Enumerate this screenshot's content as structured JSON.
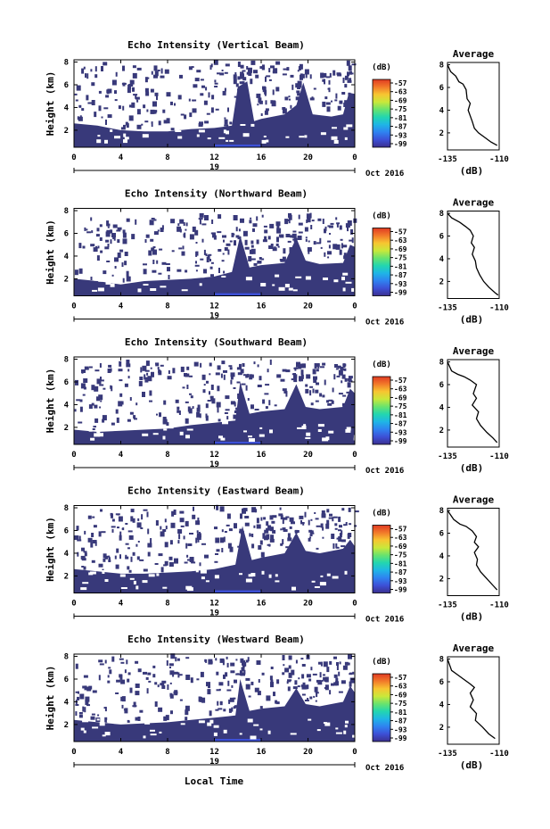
{
  "figure": {
    "xlabel": "Local Time",
    "date_label": "Oct 2016",
    "day_label": "19"
  },
  "colors": {
    "dominant": "#38397a",
    "colorbar": [
      "#3b2f8f",
      "#3d50d6",
      "#2f82f0",
      "#1fb5e6",
      "#22d6b0",
      "#68e36e",
      "#c9e83a",
      "#f7c631",
      "#f27a2a",
      "#e03a22"
    ]
  },
  "chart_data": [
    {
      "type": "heatmap",
      "title": "Echo Intensity (Vertical Beam)",
      "ylabel": "Height (km)",
      "x_ticks": [
        "0",
        "4",
        "8",
        "12",
        "16",
        "20",
        "0"
      ],
      "y_ticks": [
        "8",
        "6",
        "4",
        "2"
      ],
      "xlim": [
        0,
        24
      ],
      "ylim": [
        0.5,
        8.2
      ],
      "colorbar": {
        "label": "(dB)",
        "ticks": [
          "-57",
          "-63",
          "-69",
          "-75",
          "-81",
          "-87",
          "-93",
          "-99"
        ]
      },
      "average_profile": {
        "title": "Average",
        "xlabel": "(dB)",
        "x_ticks": [
          "-135",
          "-110"
        ],
        "xlim": [
          -135,
          -110
        ],
        "y_ticks": [
          "8",
          "6",
          "4",
          "2"
        ],
        "ylim": [
          0.5,
          8.2
        ],
        "points": [
          [
            -135,
            8.0
          ],
          [
            -133.5,
            7.4
          ],
          [
            -131,
            7.0
          ],
          [
            -129.5,
            6.5
          ],
          [
            -127.5,
            6.3
          ],
          [
            -126,
            5.8
          ],
          [
            -125.5,
            5.0
          ],
          [
            -124,
            4.6
          ],
          [
            -125,
            4.0
          ],
          [
            -124,
            3.5
          ],
          [
            -123,
            3.0
          ],
          [
            -122,
            2.4
          ],
          [
            -120,
            2.0
          ],
          [
            -117,
            1.6
          ],
          [
            -114,
            1.2
          ],
          [
            -111,
            0.9
          ]
        ]
      },
      "echo_top": [
        [
          0,
          2.6
        ],
        [
          2,
          2.4
        ],
        [
          4,
          2.0
        ],
        [
          6,
          1.9
        ],
        [
          8,
          1.9
        ],
        [
          10,
          2.1
        ],
        [
          12,
          2.2
        ],
        [
          13.5,
          2.4
        ],
        [
          14,
          5.8
        ],
        [
          14.8,
          6.3
        ],
        [
          15.4,
          2.8
        ],
        [
          16,
          3.0
        ],
        [
          18,
          3.4
        ],
        [
          19,
          4.2
        ],
        [
          19.6,
          6.2
        ],
        [
          20.4,
          3.4
        ],
        [
          22,
          3.2
        ],
        [
          23,
          3.4
        ],
        [
          23.5,
          5.3
        ],
        [
          24,
          5.2
        ]
      ],
      "scatter_top": 7.8
    },
    {
      "type": "heatmap",
      "title": "Echo Intensity (Northward Beam)",
      "ylabel": "Height (km)",
      "x_ticks": [
        "0",
        "4",
        "8",
        "12",
        "16",
        "20",
        "0"
      ],
      "y_ticks": [
        "8",
        "6",
        "4",
        "2"
      ],
      "xlim": [
        0,
        24
      ],
      "ylim": [
        0.5,
        8.2
      ],
      "colorbar": {
        "label": "(dB)",
        "ticks": [
          "-57",
          "-63",
          "-69",
          "-75",
          "-81",
          "-87",
          "-93",
          "-99"
        ]
      },
      "average_profile": {
        "title": "Average",
        "xlabel": "(dB)",
        "x_ticks": [
          "-135",
          "-110"
        ],
        "xlim": [
          -135,
          -110
        ],
        "y_ticks": [
          "8",
          "6",
          "4",
          "2"
        ],
        "ylim": [
          0.5,
          8.2
        ],
        "points": [
          [
            -135,
            8.0
          ],
          [
            -133,
            7.6
          ],
          [
            -129,
            7.2
          ],
          [
            -126,
            6.8
          ],
          [
            -124,
            6.5
          ],
          [
            -122.5,
            6.0
          ],
          [
            -123.5,
            5.4
          ],
          [
            -122,
            5.0
          ],
          [
            -123,
            4.4
          ],
          [
            -121.5,
            3.8
          ],
          [
            -121,
            3.2
          ],
          [
            -119.5,
            2.6
          ],
          [
            -117.5,
            2.0
          ],
          [
            -115,
            1.5
          ],
          [
            -112,
            1.0
          ],
          [
            -110.5,
            0.8
          ]
        ]
      },
      "echo_top": [
        [
          0,
          2.0
        ],
        [
          2,
          1.8
        ],
        [
          4,
          1.5
        ],
        [
          6,
          1.8
        ],
        [
          8,
          1.9
        ],
        [
          10,
          2.0
        ],
        [
          12,
          2.2
        ],
        [
          13.5,
          2.6
        ],
        [
          14.2,
          5.8
        ],
        [
          15,
          3.0
        ],
        [
          16,
          3.2
        ],
        [
          18,
          3.4
        ],
        [
          19,
          5.6
        ],
        [
          19.8,
          3.6
        ],
        [
          21,
          3.3
        ],
        [
          23,
          3.4
        ],
        [
          23.6,
          5.0
        ],
        [
          24,
          4.8
        ]
      ],
      "scatter_top": 7.4
    },
    {
      "type": "heatmap",
      "title": "Echo Intensity (Southward Beam)",
      "ylabel": "Height (km)",
      "x_ticks": [
        "0",
        "4",
        "8",
        "12",
        "16",
        "20",
        "0"
      ],
      "y_ticks": [
        "8",
        "6",
        "4",
        "2"
      ],
      "xlim": [
        0,
        24
      ],
      "ylim": [
        0.5,
        8.2
      ],
      "colorbar": {
        "label": "(dB)",
        "ticks": [
          "-57",
          "-63",
          "-69",
          "-75",
          "-81",
          "-87",
          "-93",
          "-99"
        ]
      },
      "average_profile": {
        "title": "Average",
        "xlabel": "(dB)",
        "x_ticks": [
          "-135",
          "-110"
        ],
        "xlim": [
          -135,
          -110
        ],
        "y_ticks": [
          "8",
          "6",
          "4",
          "2"
        ],
        "ylim": [
          0.5,
          8.2
        ],
        "points": [
          [
            -135,
            8.0
          ],
          [
            -133,
            7.2
          ],
          [
            -130,
            6.9
          ],
          [
            -127,
            6.7
          ],
          [
            -124,
            6.4
          ],
          [
            -121,
            6.0
          ],
          [
            -122.5,
            5.2
          ],
          [
            -121,
            4.8
          ],
          [
            -123,
            4.2
          ],
          [
            -120,
            3.6
          ],
          [
            -121,
            3.0
          ],
          [
            -119,
            2.4
          ],
          [
            -116,
            1.8
          ],
          [
            -113,
            1.3
          ],
          [
            -111,
            0.9
          ]
        ]
      },
      "echo_top": [
        [
          0,
          1.8
        ],
        [
          2,
          1.6
        ],
        [
          4,
          1.7
        ],
        [
          6,
          1.8
        ],
        [
          8,
          1.9
        ],
        [
          10,
          2.2
        ],
        [
          12,
          2.4
        ],
        [
          13.8,
          2.6
        ],
        [
          14.2,
          6.0
        ],
        [
          15,
          3.2
        ],
        [
          16,
          3.4
        ],
        [
          18,
          3.6
        ],
        [
          19,
          5.8
        ],
        [
          19.8,
          3.8
        ],
        [
          21,
          3.6
        ],
        [
          23,
          3.8
        ],
        [
          23.6,
          5.4
        ],
        [
          24,
          5.0
        ]
      ],
      "scatter_top": 7.6
    },
    {
      "type": "heatmap",
      "title": "Echo Intensity (Eastward Beam)",
      "ylabel": "Height (km)",
      "x_ticks": [
        "0",
        "4",
        "8",
        "12",
        "16",
        "20",
        "0"
      ],
      "y_ticks": [
        "8",
        "6",
        "4",
        "2"
      ],
      "xlim": [
        0,
        24
      ],
      "ylim": [
        0.5,
        8.2
      ],
      "colorbar": {
        "label": "(dB)",
        "ticks": [
          "-57",
          "-63",
          "-69",
          "-75",
          "-81",
          "-87",
          "-93",
          "-99"
        ]
      },
      "average_profile": {
        "title": "Average",
        "xlabel": "(dB)",
        "x_ticks": [
          "-135",
          "-110"
        ],
        "xlim": [
          -135,
          -110
        ],
        "y_ticks": [
          "8",
          "6",
          "4",
          "2"
        ],
        "ylim": [
          0.5,
          8.2
        ],
        "points": [
          [
            -135,
            8.0
          ],
          [
            -132,
            7.2
          ],
          [
            -129,
            6.8
          ],
          [
            -126,
            6.6
          ],
          [
            -123,
            6.2
          ],
          [
            -121,
            5.7
          ],
          [
            -122,
            5.2
          ],
          [
            -120,
            4.8
          ],
          [
            -122,
            4.3
          ],
          [
            -120.5,
            3.7
          ],
          [
            -121,
            3.2
          ],
          [
            -119,
            2.6
          ],
          [
            -116,
            2.0
          ],
          [
            -113,
            1.4
          ],
          [
            -111,
            1.0
          ]
        ]
      },
      "echo_top": [
        [
          0,
          2.6
        ],
        [
          2,
          2.4
        ],
        [
          4,
          2.2
        ],
        [
          6,
          2.2
        ],
        [
          8,
          2.3
        ],
        [
          10,
          2.4
        ],
        [
          12,
          2.6
        ],
        [
          13.8,
          3.0
        ],
        [
          14.4,
          6.4
        ],
        [
          15.2,
          3.4
        ],
        [
          16,
          3.6
        ],
        [
          18,
          4.0
        ],
        [
          19,
          5.8
        ],
        [
          19.8,
          4.2
        ],
        [
          21,
          4.0
        ],
        [
          23,
          4.4
        ],
        [
          23.6,
          5.2
        ],
        [
          24,
          4.6
        ]
      ],
      "scatter_top": 7.8
    },
    {
      "type": "heatmap",
      "title": "Echo Intensity (Westward Beam)",
      "ylabel": "Height (km)",
      "x_ticks": [
        "0",
        "4",
        "8",
        "12",
        "16",
        "20",
        "0"
      ],
      "y_ticks": [
        "8",
        "6",
        "4",
        "2"
      ],
      "xlim": [
        0,
        24
      ],
      "ylim": [
        0.5,
        8.2
      ],
      "colorbar": {
        "label": "(dB)",
        "ticks": [
          "-57",
          "-63",
          "-69",
          "-75",
          "-81",
          "-87",
          "-93",
          "-99"
        ]
      },
      "average_profile": {
        "title": "Average",
        "xlabel": "(dB)",
        "x_ticks": [
          "-135",
          "-110"
        ],
        "xlim": [
          -135,
          -110
        ],
        "y_ticks": [
          "8",
          "6",
          "4",
          "2"
        ],
        "ylim": [
          0.5,
          8.2
        ],
        "points": [
          [
            -135,
            8.0
          ],
          [
            -133,
            7.0
          ],
          [
            -130,
            6.6
          ],
          [
            -127,
            6.2
          ],
          [
            -124,
            5.8
          ],
          [
            -122,
            5.5
          ],
          [
            -124,
            5.0
          ],
          [
            -122.5,
            4.4
          ],
          [
            -124,
            3.8
          ],
          [
            -121,
            3.2
          ],
          [
            -121.5,
            2.6
          ],
          [
            -118,
            2.0
          ],
          [
            -115,
            1.4
          ],
          [
            -112,
            1.0
          ]
        ]
      },
      "echo_top": [
        [
          0,
          2.4
        ],
        [
          2,
          2.2
        ],
        [
          4,
          2.0
        ],
        [
          6,
          2.1
        ],
        [
          8,
          2.2
        ],
        [
          10,
          2.4
        ],
        [
          12,
          2.6
        ],
        [
          13.8,
          2.8
        ],
        [
          14.2,
          6.0
        ],
        [
          15,
          3.2
        ],
        [
          16,
          3.4
        ],
        [
          18,
          3.6
        ],
        [
          19,
          5.2
        ],
        [
          19.8,
          3.8
        ],
        [
          21,
          3.6
        ],
        [
          23,
          4.0
        ],
        [
          23.6,
          5.4
        ],
        [
          24,
          4.8
        ]
      ],
      "scatter_top": 7.8
    }
  ]
}
